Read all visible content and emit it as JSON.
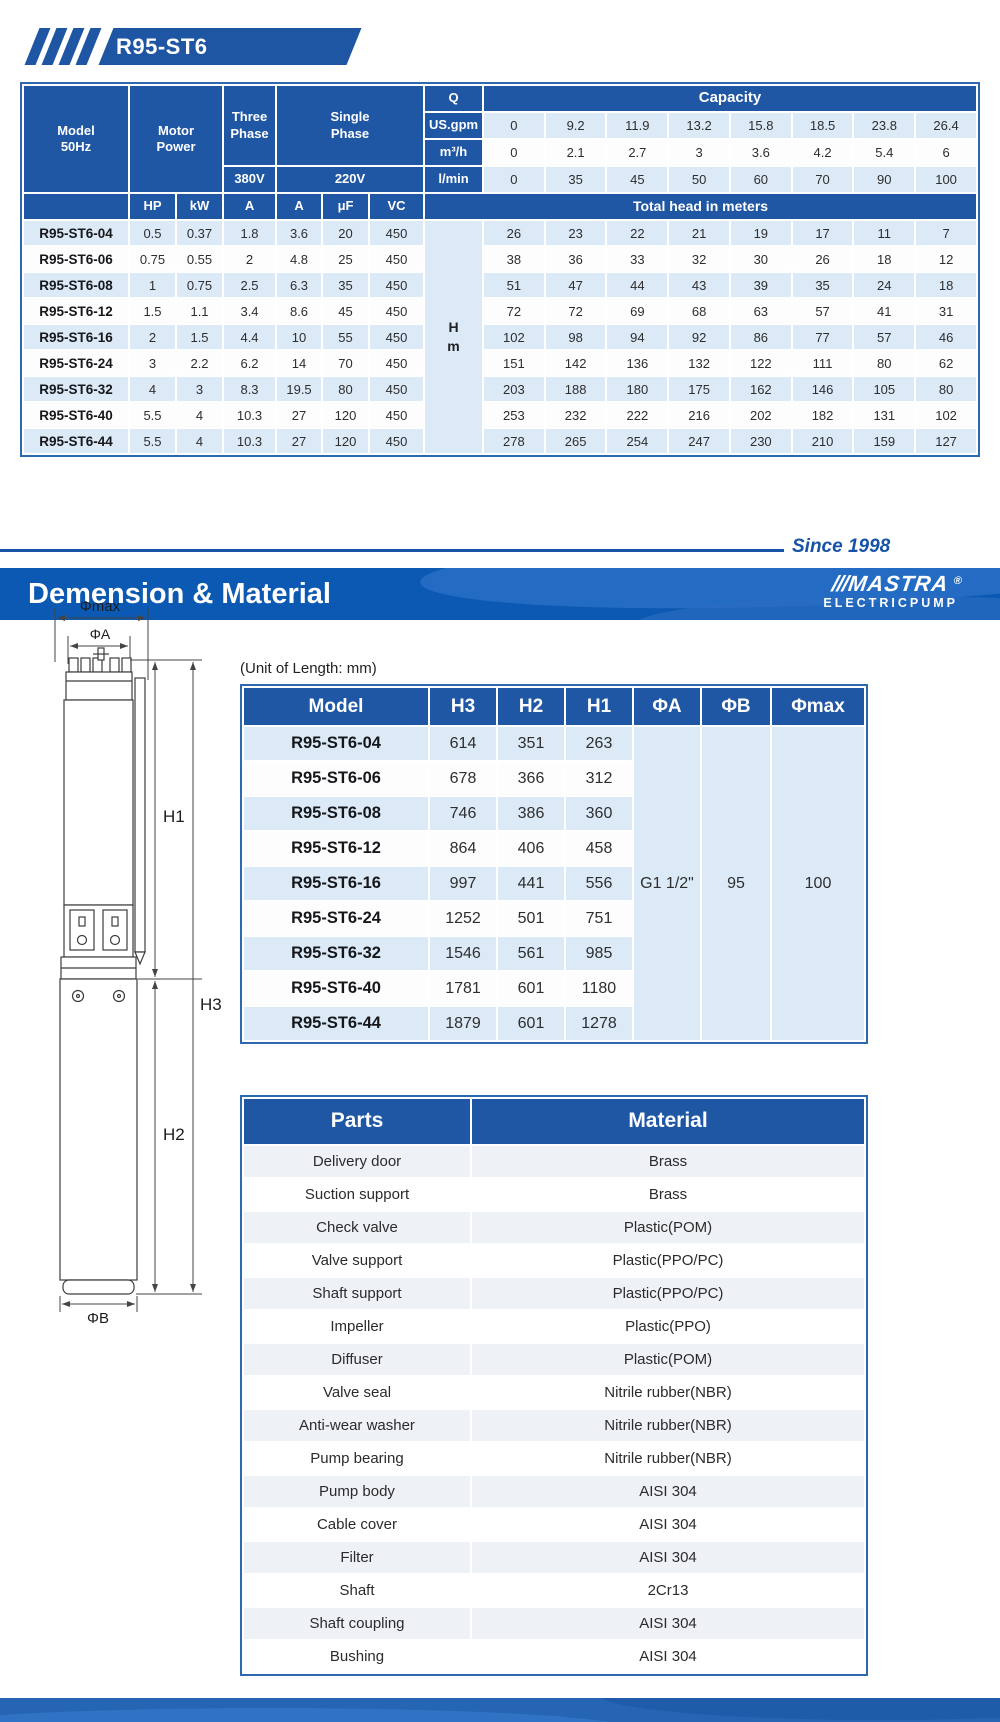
{
  "header": {
    "model_banner": "R95-ST6",
    "since": "Since 1998",
    "section_title": "Demension & Material",
    "logo_slashes": "///",
    "logo_brand": "MASTRA",
    "logo_reg": "®",
    "logo_sub": "ELECTRICPUMP",
    "unit_note": "(Unit of Length: mm)"
  },
  "colors": {
    "primary_blue": "#1f57a5",
    "section_banner_blue": "#0c59b3",
    "light_row_blue": "#dce9f7",
    "parts_light_row": "#eef1f6",
    "since_blue": "#1753a6"
  },
  "spec_table": {
    "corner": {
      "model_l1": "Model",
      "model_l2": "50Hz",
      "motor_l1": "Motor",
      "motor_l2": "Power",
      "three_l1": "Three",
      "three_l2": "Phase",
      "single_l1": "Single",
      "single_l2": "Phase",
      "v380": "380V",
      "v220": "220V"
    },
    "q": {
      "label": "Q",
      "rows": [
        {
          "key": "us_gpm",
          "label": "US.gpm",
          "shade": true,
          "values": [
            "0",
            "9.2",
            "11.9",
            "13.2",
            "15.8",
            "18.5",
            "23.8",
            "26.4"
          ]
        },
        {
          "key": "m3_h",
          "label": "m³/h",
          "shade": false,
          "values": [
            "0",
            "2.1",
            "2.7",
            "3",
            "3.6",
            "4.2",
            "5.4",
            "6"
          ]
        },
        {
          "key": "l_min",
          "label": "l/min",
          "shade": true,
          "values": [
            "0",
            "35",
            "45",
            "50",
            "60",
            "70",
            "90",
            "100"
          ]
        }
      ]
    },
    "capacity_label": "Capacity",
    "sub_headers": [
      "HP",
      "kW",
      "A",
      "A",
      "μF",
      "VC"
    ],
    "total_head_label": "Total head in meters",
    "hm_l1": "H",
    "hm_l2": "m",
    "rows": [
      {
        "model": "R95-ST6-04",
        "vals": [
          "0.5",
          "0.37",
          "1.8",
          "3.6",
          "20",
          "450"
        ],
        "head": [
          "26",
          "23",
          "22",
          "21",
          "19",
          "17",
          "11",
          "7"
        ]
      },
      {
        "model": "R95-ST6-06",
        "vals": [
          "0.75",
          "0.55",
          "2",
          "4.8",
          "25",
          "450"
        ],
        "head": [
          "38",
          "36",
          "33",
          "32",
          "30",
          "26",
          "18",
          "12"
        ]
      },
      {
        "model": "R95-ST6-08",
        "vals": [
          "1",
          "0.75",
          "2.5",
          "6.3",
          "35",
          "450"
        ],
        "head": [
          "51",
          "47",
          "44",
          "43",
          "39",
          "35",
          "24",
          "18"
        ]
      },
      {
        "model": "R95-ST6-12",
        "vals": [
          "1.5",
          "1.1",
          "3.4",
          "8.6",
          "45",
          "450"
        ],
        "head": [
          "72",
          "72",
          "69",
          "68",
          "63",
          "57",
          "41",
          "31"
        ]
      },
      {
        "model": "R95-ST6-16",
        "vals": [
          "2",
          "1.5",
          "4.4",
          "10",
          "55",
          "450"
        ],
        "head": [
          "102",
          "98",
          "94",
          "92",
          "86",
          "77",
          "57",
          "46"
        ]
      },
      {
        "model": "R95-ST6-24",
        "vals": [
          "3",
          "2.2",
          "6.2",
          "14",
          "70",
          "450"
        ],
        "head": [
          "151",
          "142",
          "136",
          "132",
          "122",
          "111",
          "80",
          "62"
        ]
      },
      {
        "model": "R95-ST6-32",
        "vals": [
          "4",
          "3",
          "8.3",
          "19.5",
          "80",
          "450"
        ],
        "head": [
          "203",
          "188",
          "180",
          "175",
          "162",
          "146",
          "105",
          "80"
        ]
      },
      {
        "model": "R95-ST6-40",
        "vals": [
          "5.5",
          "4",
          "10.3",
          "27",
          "120",
          "450"
        ],
        "head": [
          "253",
          "232",
          "222",
          "216",
          "202",
          "182",
          "131",
          "102"
        ]
      },
      {
        "model": "R95-ST6-44",
        "vals": [
          "5.5",
          "4",
          "10.3",
          "27",
          "120",
          "450"
        ],
        "head": [
          "278",
          "265",
          "254",
          "247",
          "230",
          "210",
          "159",
          "127"
        ]
      }
    ]
  },
  "dimension_table": {
    "headers": [
      "Model",
      "H3",
      "H2",
      "H1",
      "ΦA",
      "ΦB",
      "Φmax"
    ],
    "rows": [
      [
        "R95-ST6-04",
        "614",
        "351",
        "263"
      ],
      [
        "R95-ST6-06",
        "678",
        "366",
        "312"
      ],
      [
        "R95-ST6-08",
        "746",
        "386",
        "360"
      ],
      [
        "R95-ST6-12",
        "864",
        "406",
        "458"
      ],
      [
        "R95-ST6-16",
        "997",
        "441",
        "556"
      ],
      [
        "R95-ST6-24",
        "1252",
        "501",
        "751"
      ],
      [
        "R95-ST6-32",
        "1546",
        "561",
        "985"
      ],
      [
        "R95-ST6-40",
        "1781",
        "601",
        "1180"
      ],
      [
        "R95-ST6-44",
        "1879",
        "601",
        "1278"
      ]
    ],
    "merged": {
      "phi_a": "G1 1/2\"",
      "phi_b": "95",
      "phi_max": "100"
    }
  },
  "parts_table": {
    "headers": [
      "Parts",
      "Material"
    ],
    "rows": [
      [
        "Delivery door",
        "Brass"
      ],
      [
        "Suction support",
        "Brass"
      ],
      [
        "Check valve",
        "Plastic(POM)"
      ],
      [
        "Valve support",
        "Plastic(PPO/PC)"
      ],
      [
        "Shaft support",
        "Plastic(PPO/PC)"
      ],
      [
        "Impeller",
        "Plastic(PPO)"
      ],
      [
        "Diffuser",
        "Plastic(POM)"
      ],
      [
        "Valve seal",
        "Nitrile rubber(NBR)"
      ],
      [
        "Anti-wear washer",
        "Nitrile rubber(NBR)"
      ],
      [
        "Pump bearing",
        "Nitrile rubber(NBR)"
      ],
      [
        "Pump body",
        "AISI 304"
      ],
      [
        "Cable cover",
        "AISI 304"
      ],
      [
        "Filter",
        "AISI 304"
      ],
      [
        "Shaft",
        "2Cr13"
      ],
      [
        "Shaft coupling",
        "AISI 304"
      ],
      [
        "Bushing",
        "AISI 304"
      ]
    ]
  },
  "diagram": {
    "labels": {
      "phi_max": "Φmax",
      "phi_a": "ΦA",
      "h1": "H1",
      "h2": "H2",
      "h3": "H3",
      "phi_b": "ΦB"
    }
  }
}
